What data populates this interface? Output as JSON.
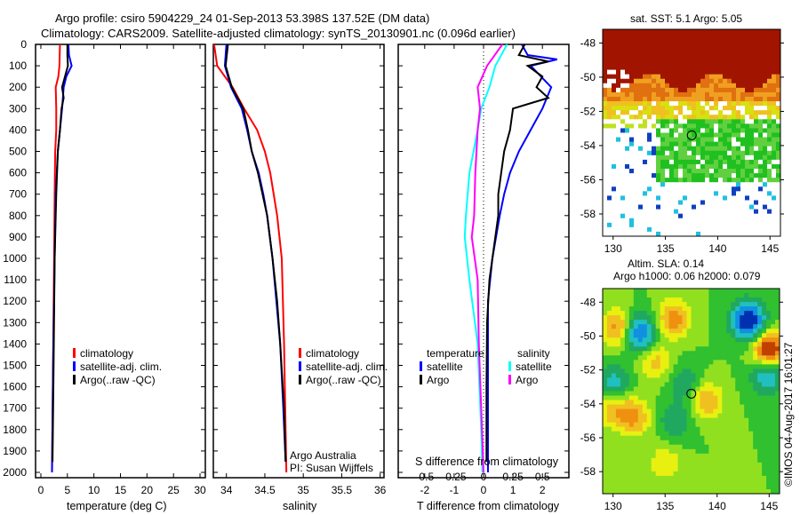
{
  "title_line1": "Argo profile: csiro 5904229_24 01-Sep-2013 53.398S 137.52E (DM data)",
  "title_line2": "Climatology: CARS2009. Satellite-adjusted climatology: synTS_20130901.nc (0.096d earlier)",
  "colors": {
    "climatology": "#ff0000",
    "satellite": "#0000ff",
    "argo": "#000000",
    "sal_satellite": "#00ffff",
    "sal_argo": "#ff00ff"
  },
  "chart_data": [
    {
      "type": "line",
      "name": "temperature",
      "xlabel": "temperature (deg C)",
      "xlim": [
        -1,
        31
      ],
      "ylim": [
        2050,
        0
      ],
      "xticks": [
        "0",
        "5",
        "10",
        "15",
        "20",
        "25",
        "30"
      ],
      "xtick_values": [
        0,
        5,
        10,
        15,
        20,
        25,
        30
      ],
      "yticks": [
        "0",
        "100",
        "200",
        "300",
        "400",
        "500",
        "600",
        "700",
        "800",
        "900",
        "1000",
        "1100",
        "1200",
        "1300",
        "1400",
        "1500",
        "1600",
        "1700",
        "1800",
        "1900",
        "2000"
      ],
      "legend": [
        "climatology",
        "satellite-adj. clim.",
        "Argo(..raw -QC)"
      ],
      "series": [
        {
          "name": "climatology",
          "color": "#ff0000",
          "depth": [
            0,
            100,
            150,
            200,
            300,
            400,
            500,
            700,
            1000,
            1500,
            2000
          ],
          "values": [
            3.6,
            3.5,
            3.3,
            2.8,
            2.9,
            2.9,
            2.7,
            2.6,
            2.5,
            2.3,
            2.1
          ]
        },
        {
          "name": "satellite-adj. clim.",
          "color": "#0000ff",
          "depth": [
            0,
            50,
            100,
            150,
            200,
            300,
            400,
            500,
            700,
            1000,
            1500,
            2000
          ],
          "values": [
            5.2,
            5.3,
            5.8,
            4.8,
            4.3,
            4.0,
            3.6,
            3.2,
            2.8,
            2.6,
            2.3,
            2.1
          ]
        },
        {
          "name": "Argo(..raw -QC)",
          "color": "#000000",
          "depth": [
            0,
            50,
            100,
            200,
            250,
            300,
            400,
            500,
            700,
            1000,
            1500,
            1950
          ],
          "values": [
            5.0,
            5.0,
            5.1,
            4.0,
            4.3,
            3.9,
            3.6,
            3.2,
            2.9,
            2.6,
            2.4,
            2.2
          ]
        }
      ]
    },
    {
      "type": "line",
      "name": "salinity",
      "xlabel": "salinity",
      "xlim": [
        33.83,
        36.05
      ],
      "ylim": [
        2050,
        0
      ],
      "xticks": [
        "34",
        "34.5",
        "35",
        "35.5",
        "36"
      ],
      "xtick_values": [
        34,
        34.5,
        35,
        35.5,
        36
      ],
      "legend": [
        "climatology",
        "satellite-adj. clim.",
        "Argo(..raw -QC)"
      ],
      "annotations": [
        "Argo Australia",
        "PI: Susan Wijffels"
      ],
      "series": [
        {
          "name": "climatology",
          "color": "#ff0000",
          "depth": [
            0,
            100,
            200,
            300,
            400,
            500,
            600,
            800,
            1000,
            1400,
            2000
          ],
          "values": [
            33.84,
            33.88,
            34.08,
            34.23,
            34.4,
            34.5,
            34.57,
            34.66,
            34.72,
            34.75,
            34.78
          ]
        },
        {
          "name": "satellite-adj. clim.",
          "color": "#0000ff",
          "depth": [
            0,
            100,
            200,
            300,
            400,
            500,
            600,
            700,
            800,
            1000,
            1200,
            1400,
            1700,
            1950
          ],
          "values": [
            34.0,
            33.98,
            34.06,
            34.2,
            34.27,
            34.33,
            34.42,
            34.48,
            34.53,
            34.6,
            34.65,
            34.7,
            34.74,
            34.77
          ]
        },
        {
          "name": "Argo(..raw -QC)",
          "color": "#000000",
          "depth": [
            0,
            100,
            200,
            300,
            400,
            500,
            600,
            700,
            800,
            1000,
            1200,
            1400,
            1700,
            1950
          ],
          "values": [
            34.02,
            33.99,
            34.07,
            34.22,
            34.28,
            34.33,
            34.41,
            34.47,
            34.53,
            34.6,
            34.66,
            34.7,
            34.75,
            34.77
          ]
        }
      ]
    },
    {
      "type": "line",
      "name": "difference from climatology",
      "xlabel": "T difference from climatology",
      "x2label": "S difference from climatology",
      "xlim": [
        -2.9,
        2.9
      ],
      "x2lim": [
        -0.725,
        0.725
      ],
      "ylim": [
        2050,
        0
      ],
      "xticks": [
        "-2",
        "-1",
        "0",
        "1",
        "2"
      ],
      "xtick_values": [
        -2,
        -1,
        0,
        1,
        2
      ],
      "x2ticks": [
        "-0.5",
        "-0.25",
        "0",
        "0.25",
        "0.5"
      ],
      "x2tick_values": [
        -0.5,
        -0.25,
        0,
        0.25,
        0.5
      ],
      "legend": {
        "temperature_title": "temperature",
        "salinity_title": "salinity",
        "t_sat": "satellite",
        "t_argo": "Argo",
        "s_sat": "satellite",
        "s_argo": "Argo"
      },
      "series": [
        {
          "name": "T satellite",
          "axis": "T",
          "color": "#0000ff",
          "depth": [
            0,
            50,
            70,
            100,
            200,
            300,
            400,
            500,
            600,
            700,
            800,
            1000,
            1200,
            1500,
            2000
          ],
          "values": [
            1.3,
            1.5,
            2.5,
            1.6,
            2.3,
            2.0,
            1.6,
            1.2,
            0.9,
            0.7,
            0.55,
            0.3,
            0.15,
            0.15,
            0.15
          ]
        },
        {
          "name": "T Argo",
          "axis": "T",
          "color": "#000000",
          "depth": [
            0,
            50,
            80,
            100,
            150,
            200,
            250,
            300,
            400,
            500,
            600,
            700,
            800,
            900,
            1000,
            1100,
            1300,
            1600,
            1950
          ],
          "values": [
            1.4,
            1.2,
            2.2,
            1.5,
            2.0,
            1.8,
            2.2,
            1.0,
            0.9,
            0.7,
            0.6,
            0.5,
            0.5,
            0.4,
            0.3,
            0.2,
            0.12,
            0.1,
            0.1
          ]
        },
        {
          "name": "S satellite",
          "axis": "S",
          "color": "#00ffff",
          "depth": [
            0,
            50,
            100,
            200,
            300,
            400,
            600,
            800,
            900,
            1100,
            1400,
            1800,
            2000
          ],
          "values": [
            0.2,
            0.15,
            0.1,
            0.05,
            -0.02,
            -0.05,
            -0.12,
            -0.15,
            -0.16,
            -0.12,
            -0.05,
            -0.02,
            -0.01
          ]
        },
        {
          "name": "S Argo",
          "axis": "S",
          "color": "#ff00ff",
          "depth": [
            0,
            100,
            200,
            300,
            400,
            600,
            800,
            900,
            1100,
            1400,
            1700,
            2000
          ],
          "values": [
            0.16,
            0.03,
            -0.05,
            -0.03,
            -0.05,
            -0.07,
            -0.08,
            -0.1,
            -0.05,
            -0.04,
            -0.02,
            0
          ]
        }
      ]
    },
    {
      "type": "heatmap",
      "name": "sst-map",
      "title": "sat. SST: 5.1 Argo: 5.05",
      "xlim": [
        129,
        146
      ],
      "ylim": [
        -59.3,
        -47.2
      ],
      "xticks": [
        "130",
        "135",
        "140",
        "145"
      ],
      "xtick_values": [
        130,
        135,
        140,
        145
      ],
      "yticks": [
        "-48",
        "-50",
        "-52",
        "-54",
        "-56",
        "-58"
      ],
      "ytick_values": [
        -48,
        -50,
        -52,
        -54,
        -56,
        -58
      ],
      "marker": {
        "lon": 137.52,
        "lat": -53.398
      }
    },
    {
      "type": "heatmap",
      "name": "sla-map",
      "title_line1": "Altim. SLA: 0.14",
      "title_line2": "Argo h1000: 0.06 h2000: 0.079",
      "xlim": [
        129,
        146
      ],
      "ylim": [
        -59.3,
        -47.2
      ],
      "xticks": [
        "130",
        "135",
        "140",
        "145"
      ],
      "xtick_values": [
        130,
        135,
        140,
        145
      ],
      "yticks": [
        "-48",
        "-50",
        "-52",
        "-54",
        "-56",
        "-58"
      ],
      "ytick_values": [
        -48,
        -50,
        -52,
        -54,
        -56,
        -58
      ],
      "marker": {
        "lon": 137.52,
        "lat": -53.398
      }
    }
  ],
  "copyright": "©IMOS 04-Aug-2017 16:01:27"
}
